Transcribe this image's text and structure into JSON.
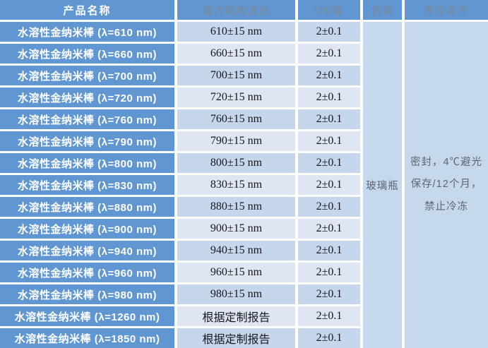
{
  "table": {
    "headers": [
      "产品名称",
      "最大吸收波长",
      "OD值",
      "包装",
      "保存条件"
    ],
    "rows": [
      {
        "name": "水溶性金纳米棒 (λ=610 nm)",
        "wavelength": "610±15 nm",
        "od": "2±0.1"
      },
      {
        "name": "水溶性金纳米棒 (λ=660 nm)",
        "wavelength": "660±15 nm",
        "od": "2±0.1"
      },
      {
        "name": "水溶性金纳米棒 (λ=700 nm)",
        "wavelength": "700±15 nm",
        "od": "2±0.1"
      },
      {
        "name": "水溶性金纳米棒 (λ=720 nm)",
        "wavelength": "720±15 nm",
        "od": "2±0.1"
      },
      {
        "name": "水溶性金纳米棒 (λ=760 nm)",
        "wavelength": "760±15 nm",
        "od": "2±0.1"
      },
      {
        "name": "水溶性金纳米棒 (λ=790 nm)",
        "wavelength": "790±15 nm",
        "od": "2±0.1"
      },
      {
        "name": "水溶性金纳米棒 (λ=800 nm)",
        "wavelength": "800±15 nm",
        "od": "2±0.1"
      },
      {
        "name": "水溶性金纳米棒 (λ=830 nm)",
        "wavelength": "830±15 nm",
        "od": "2±0.1"
      },
      {
        "name": "水溶性金纳米棒 (λ=880 nm)",
        "wavelength": "880±15 nm",
        "od": "2±0.1"
      },
      {
        "name": "水溶性金纳米棒 (λ=900 nm)",
        "wavelength": "900±15 nm",
        "od": "2±0.1"
      },
      {
        "name": "水溶性金纳米棒 (λ=940 nm)",
        "wavelength": "940±15 nm",
        "od": "2±0.1"
      },
      {
        "name": "水溶性金纳米棒 (λ=960 nm)",
        "wavelength": "960±15 nm",
        "od": "2±0.1"
      },
      {
        "name": "水溶性金纳米棒 (λ=980 nm)",
        "wavelength": "980±15 nm",
        "od": "2±0.1"
      },
      {
        "name": "水溶性金纳米棒 (λ=1260 nm)",
        "wavelength": "根据定制报告",
        "od": "2±0.1"
      },
      {
        "name": "水溶性金纳米棒 (λ=1850 nm)",
        "wavelength": "根据定制报告",
        "od": "2±0.1"
      }
    ],
    "packaging": "玻璃瓶",
    "storage_condition": {
      "full_text": "密封，4℃避光保存/12个月，禁止冷冻",
      "line1": "密封，4℃避光",
      "line2": "保存/12个月，",
      "line3": "禁止冷冻"
    }
  },
  "colors": {
    "header_blue": "#6097d3",
    "row_band_dark": "#c6d7ed",
    "row_band_light": "#dde6f2",
    "merged_cell_bg": "#c6d8ec",
    "header_text_gray": "#7b8995",
    "product_text": "#ffffff"
  }
}
